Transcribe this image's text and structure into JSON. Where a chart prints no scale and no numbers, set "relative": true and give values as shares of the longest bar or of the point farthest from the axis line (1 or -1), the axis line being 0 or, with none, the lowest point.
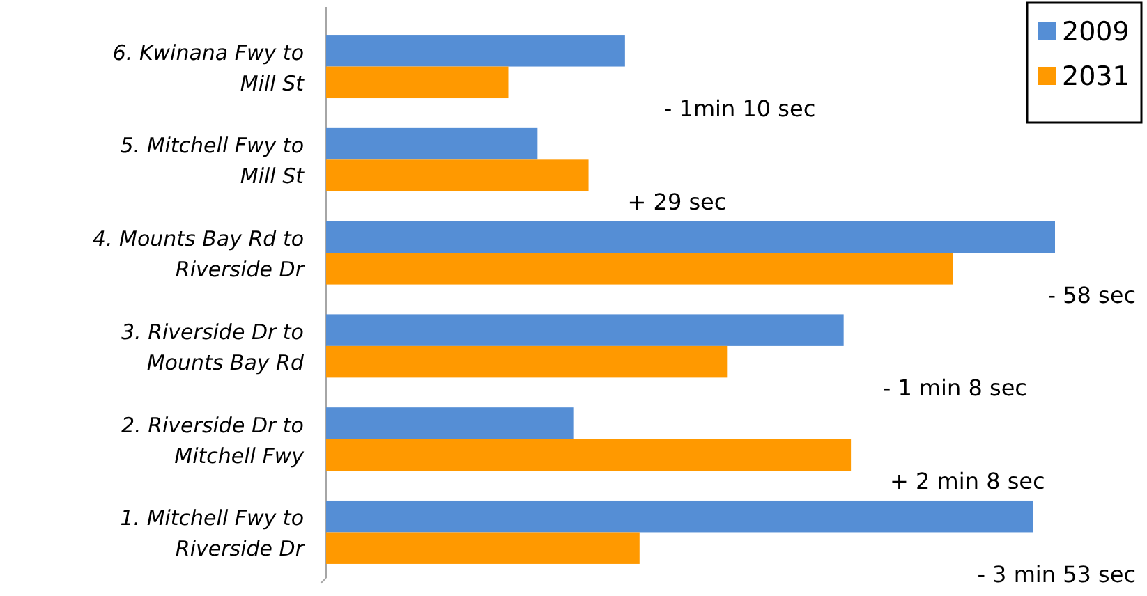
{
  "chart_data": {
    "type": "bar",
    "orientation": "horizontal",
    "relative": true,
    "legend": "top right",
    "categories": [
      "6. Kwinana Fwy to Mill St",
      "5. Mitchell Fwy to Mill St",
      "4. Mounts Bay Rd to Riverside Dr",
      "3. Riverside Dr to Mounts Bay Rd",
      "2. Riverside Dr to Mitchell Fwy",
      "1. Mitchell Fwy to Riverside Dr"
    ],
    "series": [
      {
        "name": "2009",
        "color": "#558ed5",
        "values": [
          0.41,
          0.29,
          1,
          0.71,
          0.34,
          0.97
        ]
      },
      {
        "name": "2031",
        "color": "#ff9900",
        "values": [
          0.25,
          0.36,
          0.86,
          0.55,
          0.72,
          0.43
        ]
      }
    ],
    "annotations": [
      "-  1min 10 sec",
      "+ 29 sec",
      "-  58 sec",
      "- 1 min 8 sec",
      "+ 2 min 8 sec",
      "- 3 min 53 sec"
    ]
  }
}
